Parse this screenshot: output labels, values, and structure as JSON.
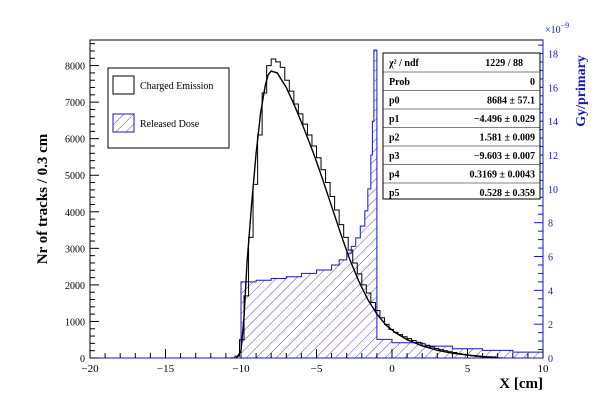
{
  "chart_data": {
    "type": "histogram",
    "xlabel": "X [cm]",
    "ylabel_left": "Nr of tracks / 0.3 cm",
    "ylabel_right": "Gy/primary",
    "right_multiplier": "×10",
    "right_multiplier_exp": "−9",
    "xlim": [
      -20,
      10
    ],
    "ylim_left": [
      0,
      8700
    ],
    "ylim_right": [
      0,
      18.8
    ],
    "x_ticks": [
      -20,
      -15,
      -10,
      -5,
      0,
      5,
      10
    ],
    "x_tick_labels": [
      "−20",
      "−15",
      "−10",
      "−5",
      "0",
      "5",
      "10"
    ],
    "y_left_ticks": [
      0,
      1000,
      2000,
      3000,
      4000,
      5000,
      6000,
      7000,
      8000
    ],
    "y_right_ticks": [
      0,
      2,
      4,
      6,
      8,
      10,
      12,
      14,
      16,
      18
    ],
    "legend": [
      {
        "name": "Charged Emission",
        "style": "hollow",
        "color": "#000000"
      },
      {
        "name": "Released Dose",
        "style": "hatched",
        "color": "#1515cc"
      }
    ],
    "stats_box": {
      "header": [
        "χ² / ndf",
        "1229 / 88"
      ],
      "rows": [
        [
          "Prob",
          "0"
        ],
        [
          "p0",
          "8684 ± 57.1"
        ],
        [
          "p1",
          "−4.496 ± 0.029"
        ],
        [
          "p2",
          "1.581 ± 0.009"
        ],
        [
          "p3",
          "−9.603 ± 0.007"
        ],
        [
          "p4",
          "0.3169 ± 0.0043"
        ],
        [
          "p5",
          "0.528 ± 0.359"
        ]
      ]
    },
    "series": [
      {
        "name": "Charged Emission",
        "axis": "left",
        "bin_width": 0.3,
        "bins": [
          [
            -10.7,
            5
          ],
          [
            -10.4,
            50
          ],
          [
            -10.1,
            500
          ],
          [
            -9.8,
            1700
          ],
          [
            -9.5,
            3300
          ],
          [
            -9.2,
            4750
          ],
          [
            -8.9,
            6100
          ],
          [
            -8.6,
            7250
          ],
          [
            -8.3,
            8000
          ],
          [
            -8.0,
            8180
          ],
          [
            -7.7,
            8100
          ],
          [
            -7.4,
            7950
          ],
          [
            -7.1,
            7600
          ],
          [
            -6.8,
            7300
          ],
          [
            -6.5,
            6950
          ],
          [
            -6.2,
            6680
          ],
          [
            -5.9,
            6400
          ],
          [
            -5.6,
            6100
          ],
          [
            -5.3,
            5800
          ],
          [
            -5.0,
            5480
          ],
          [
            -4.7,
            5150
          ],
          [
            -4.4,
            4800
          ],
          [
            -4.1,
            4420
          ],
          [
            -3.8,
            4050
          ],
          [
            -3.5,
            3650
          ],
          [
            -3.2,
            3300
          ],
          [
            -2.9,
            2950
          ],
          [
            -2.6,
            2600
          ],
          [
            -2.3,
            2300
          ],
          [
            -2.0,
            2000
          ],
          [
            -1.7,
            1780
          ],
          [
            -1.4,
            1520
          ],
          [
            -1.1,
            1300
          ],
          [
            -0.8,
            1100
          ],
          [
            -0.5,
            920
          ],
          [
            -0.2,
            780
          ],
          [
            0.1,
            700
          ],
          [
            0.4,
            640
          ],
          [
            0.7,
            580
          ],
          [
            1.0,
            530
          ],
          [
            1.3,
            480
          ],
          [
            1.6,
            430
          ],
          [
            1.9,
            390
          ],
          [
            2.2,
            350
          ],
          [
            2.5,
            300
          ],
          [
            2.8,
            260
          ],
          [
            3.1,
            230
          ],
          [
            3.4,
            200
          ],
          [
            3.7,
            170
          ],
          [
            4.0,
            150
          ],
          [
            4.3,
            120
          ],
          [
            4.6,
            100
          ],
          [
            4.9,
            80
          ],
          [
            5.2,
            60
          ],
          [
            5.5,
            45
          ],
          [
            5.8,
            35
          ],
          [
            6.1,
            25
          ],
          [
            6.4,
            15
          ],
          [
            6.7,
            10
          ],
          [
            7.0,
            5
          ]
        ]
      },
      {
        "name": "Released Dose",
        "axis": "right",
        "bins": [
          [
            -20.0,
            0.0
          ],
          [
            -10.0,
            4.5
          ],
          [
            -9.0,
            4.6
          ],
          [
            -8.0,
            4.7
          ],
          [
            -7.0,
            4.8
          ],
          [
            -6.0,
            5.0
          ],
          [
            -5.0,
            5.2
          ],
          [
            -4.0,
            5.5
          ],
          [
            -3.5,
            5.8
          ],
          [
            -3.0,
            6.2
          ],
          [
            -2.7,
            6.6
          ],
          [
            -2.4,
            7.1
          ],
          [
            -2.1,
            7.8
          ],
          [
            -1.8,
            8.7
          ],
          [
            -1.6,
            10.0
          ],
          [
            -1.4,
            12.0
          ],
          [
            -1.3,
            14.0
          ],
          [
            -1.2,
            18.2
          ],
          [
            -1.0,
            1.1
          ],
          [
            0.0,
            0.9
          ],
          [
            2.0,
            0.7
          ],
          [
            4.0,
            0.55
          ],
          [
            6.0,
            0.45
          ],
          [
            8.0,
            0.35
          ],
          [
            10.0,
            0.3
          ]
        ]
      },
      {
        "name": "fit",
        "axis": "left",
        "x": [
          -10.3,
          -10.0,
          -9.8,
          -9.6,
          -9.3,
          -9.0,
          -8.7,
          -8.4,
          -8.2,
          -8.0,
          -7.6,
          -7.0,
          -6.4,
          -5.8,
          -5.2,
          -4.6,
          -4.0,
          -3.4,
          -2.8,
          -2.2,
          -1.6,
          -1.0,
          -0.4,
          0.2,
          1.0,
          2.0,
          3.0,
          4.0,
          5.0,
          6.0,
          7.0
        ],
        "y": [
          0,
          200,
          1100,
          2600,
          4200,
          5600,
          6700,
          7450,
          7750,
          7850,
          7800,
          7400,
          6850,
          6250,
          5600,
          4900,
          4150,
          3400,
          2700,
          2100,
          1600,
          1200,
          900,
          700,
          500,
          330,
          210,
          130,
          80,
          40,
          15
        ]
      }
    ],
    "colors": {
      "black": "#000000",
      "blue": "#1515cc"
    }
  }
}
